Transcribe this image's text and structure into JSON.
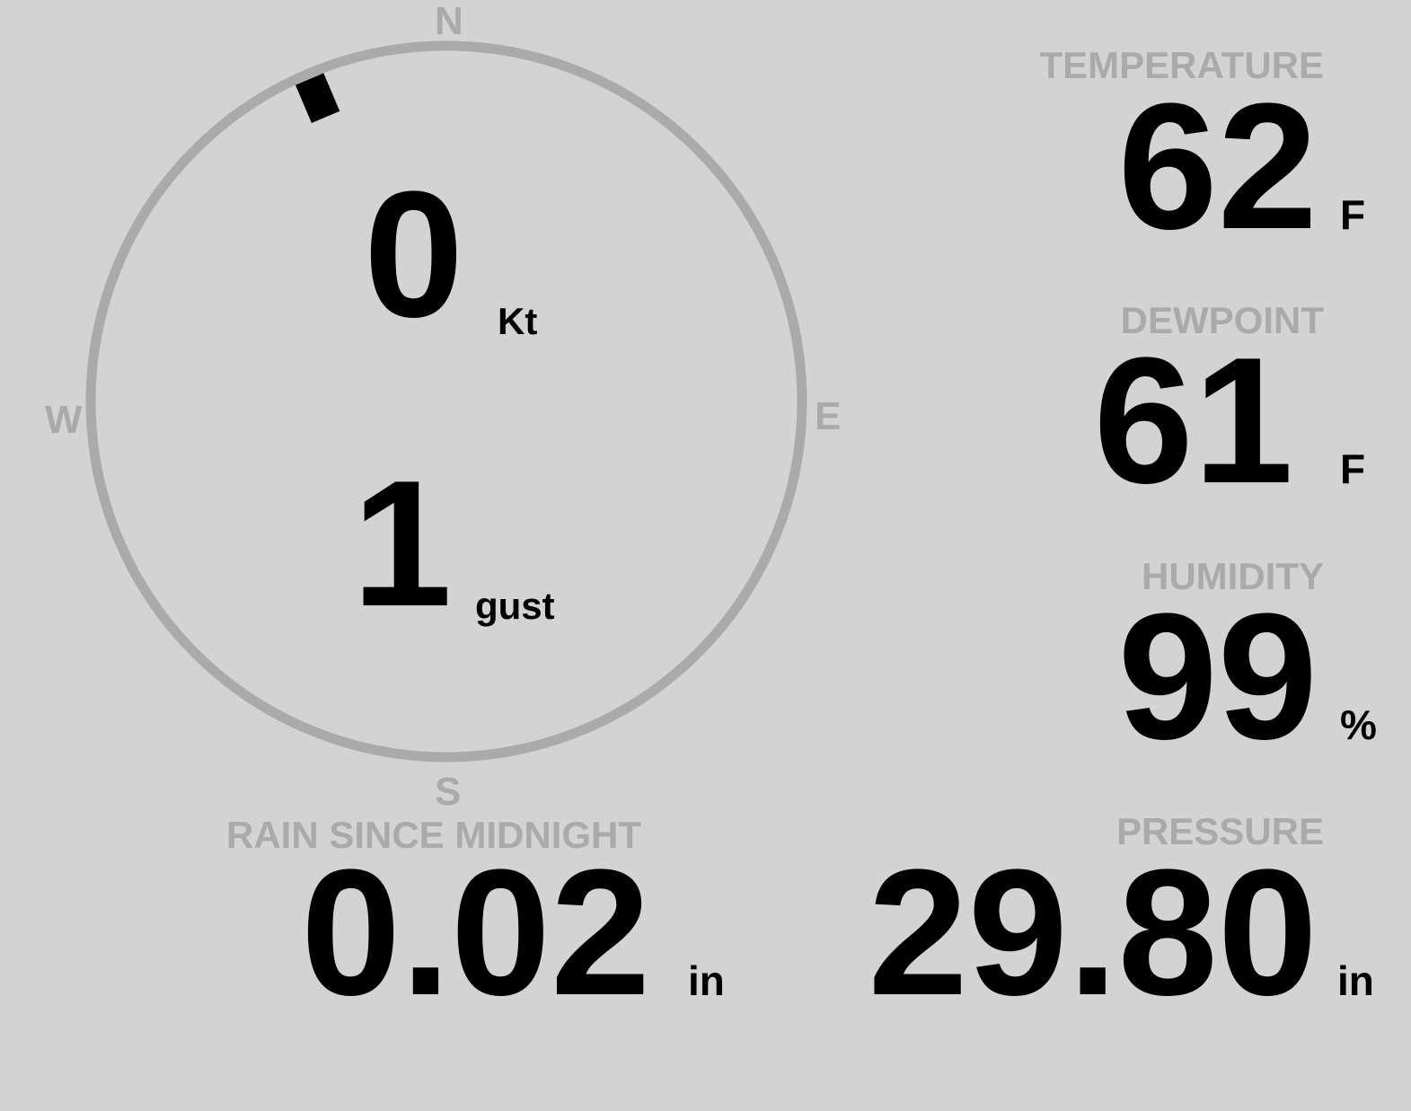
{
  "wind": {
    "speed": "0",
    "speed_unit": "Kt",
    "gust": "1",
    "gust_unit": "gust",
    "direction_deg": 337,
    "cardinals": {
      "n": "N",
      "e": "E",
      "s": "S",
      "w": "W"
    }
  },
  "temperature": {
    "label": "TEMPERATURE",
    "value": "62",
    "unit": "F"
  },
  "dewpoint": {
    "label": "DEWPOINT",
    "value": "61",
    "unit": "F"
  },
  "humidity": {
    "label": "HUMIDITY",
    "value": "99",
    "unit": "%"
  },
  "rain": {
    "label": "RAIN SINCE MIDNIGHT",
    "value": "0.02",
    "unit": "in"
  },
  "pressure": {
    "label": "PRESSURE",
    "value": "29.80",
    "unit": "in"
  },
  "colors": {
    "background": "#d3d3d3",
    "label": "#aaaaaa",
    "value": "#000000"
  }
}
